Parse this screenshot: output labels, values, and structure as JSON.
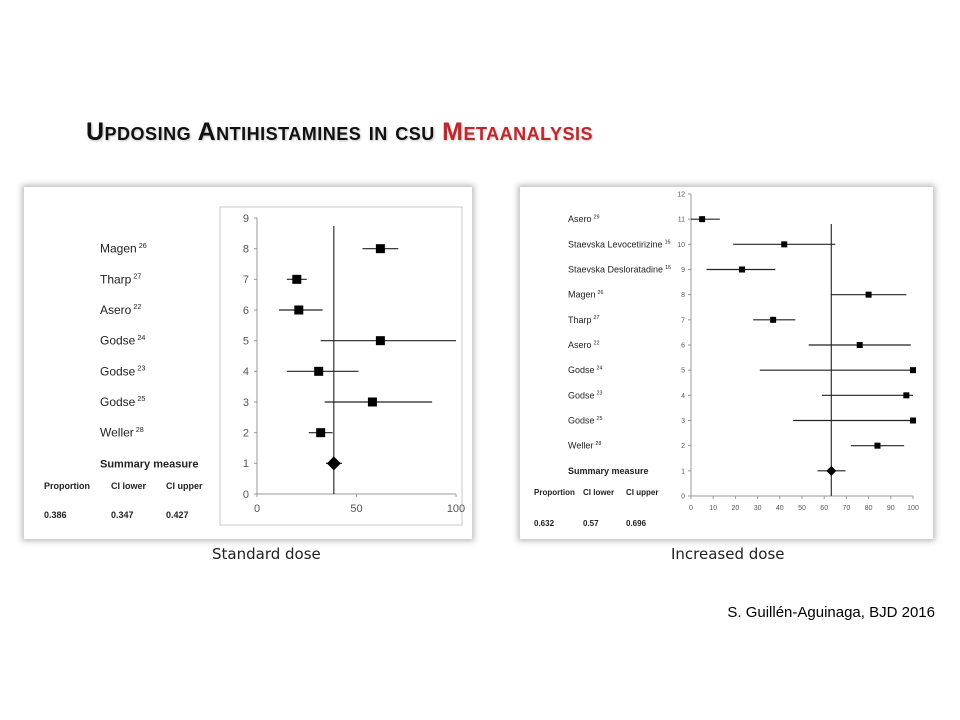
{
  "title": {
    "part1": "Updosing Antihistamines in csu",
    "part2": "Metaanalysis",
    "accent": "#c0262c"
  },
  "credit": "S. Guillén-Aguinaga, BJD 2016",
  "chart_data": [
    {
      "type": "forest",
      "caption": "Standard dose",
      "xlim": [
        0,
        100
      ],
      "xticks": [
        0,
        50,
        100
      ],
      "ylim": [
        0,
        9
      ],
      "yticks": [
        0,
        1,
        2,
        3,
        4,
        5,
        6,
        7,
        8,
        9
      ],
      "reference_line": 38.6,
      "studies": [
        {
          "label": "Magen",
          "sup": "26",
          "y": 8,
          "est": 62,
          "lo": 53,
          "hi": 71
        },
        {
          "label": "Tharp",
          "sup": "27",
          "y": 7,
          "est": 20,
          "lo": 15,
          "hi": 25
        },
        {
          "label": "Asero",
          "sup": "22",
          "y": 6,
          "est": 21,
          "lo": 11,
          "hi": 33
        },
        {
          "label": "Godse",
          "sup": "24",
          "y": 5,
          "est": 62,
          "lo": 32,
          "hi": 100
        },
        {
          "label": "Godse",
          "sup": "23",
          "y": 4,
          "est": 31,
          "lo": 15,
          "hi": 51
        },
        {
          "label": "Godse",
          "sup": "25",
          "y": 3,
          "est": 58,
          "lo": 34,
          "hi": 88
        },
        {
          "label": "Weller",
          "sup": "28",
          "y": 2,
          "est": 32,
          "lo": 26,
          "hi": 38
        }
      ],
      "summary": {
        "label": "Summary measure",
        "y": 1,
        "est": 38.6,
        "lo": 34.7,
        "hi": 42.7
      },
      "table": {
        "headers": [
          "Proportion",
          "CI lower",
          "CI upper"
        ],
        "values": [
          "0.386",
          "0.347",
          "0.427"
        ]
      }
    },
    {
      "type": "forest",
      "caption": "Increased dose",
      "xlim": [
        0,
        100
      ],
      "xticks": [
        0,
        10,
        20,
        30,
        40,
        50,
        60,
        70,
        80,
        90,
        100
      ],
      "ylim": [
        0,
        12
      ],
      "yticks": [
        0,
        1,
        2,
        3,
        4,
        5,
        6,
        7,
        8,
        9,
        10,
        11,
        12
      ],
      "reference_line": 63.2,
      "studies": [
        {
          "label": "Asero",
          "sup": "29",
          "y": 11,
          "est": 5,
          "lo": 0,
          "hi": 13
        },
        {
          "label": "Staevska Levocetirizine",
          "sup": "16",
          "y": 10,
          "est": 42,
          "lo": 19,
          "hi": 65
        },
        {
          "label": "Staevska Desloratadine",
          "sup": "16",
          "y": 9,
          "est": 23,
          "lo": 7,
          "hi": 38
        },
        {
          "label": "Magen",
          "sup": "26",
          "y": 8,
          "est": 80,
          "lo": 63,
          "hi": 97
        },
        {
          "label": "Tharp",
          "sup": "27",
          "y": 7,
          "est": 37,
          "lo": 28,
          "hi": 47
        },
        {
          "label": "Asero",
          "sup": "22",
          "y": 6,
          "est": 76,
          "lo": 53,
          "hi": 99
        },
        {
          "label": "Godse",
          "sup": "24",
          "y": 5,
          "est": 100,
          "lo": 31,
          "hi": 100
        },
        {
          "label": "Godse",
          "sup": "23",
          "y": 4,
          "est": 97,
          "lo": 59,
          "hi": 100
        },
        {
          "label": "Godse",
          "sup": "25",
          "y": 3,
          "est": 100,
          "lo": 46,
          "hi": 100
        },
        {
          "label": "Weller",
          "sup": "28",
          "y": 2,
          "est": 84,
          "lo": 72,
          "hi": 96
        }
      ],
      "summary": {
        "label": "Summary measure",
        "y": 1,
        "est": 63.2,
        "lo": 57,
        "hi": 69.6
      },
      "table": {
        "headers": [
          "Proportion",
          "CI lower",
          "CI upper"
        ],
        "values": [
          "0.632",
          "0.57",
          "0.696"
        ]
      }
    }
  ]
}
